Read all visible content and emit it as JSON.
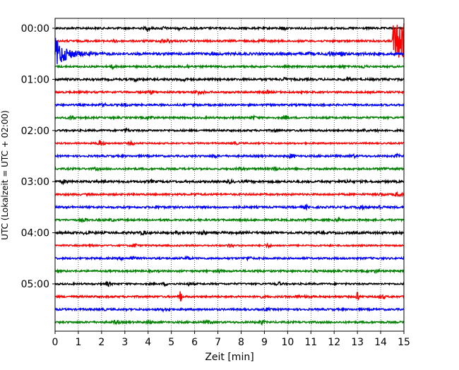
{
  "chart_data": {
    "type": "line",
    "title": "",
    "xlabel": "Zeit  [min]",
    "ylabel": "UTC (Lokalzeit = UTC + 02:00)",
    "xlim": [
      0,
      15
    ],
    "x_ticks": [
      "0",
      "1",
      "2",
      "3",
      "4",
      "5",
      "6",
      "7",
      "8",
      "9",
      "10",
      "11",
      "12",
      "13",
      "14",
      "15"
    ],
    "y_tick_labels": [
      "00:00",
      "01:00",
      "02:00",
      "03:00",
      "04:00",
      "05:00"
    ],
    "grid": "vertical dotted at each minute",
    "trace_interval_minutes": 15,
    "trace_colors": [
      "#000000",
      "#ff0000",
      "#0000ff",
      "#008000"
    ],
    "series": [
      {
        "start": "00:00",
        "color": "#000000",
        "amplitude": 1.0
      },
      {
        "start": "00:15",
        "color": "#ff0000",
        "amplitude": 1.0,
        "event_from_min": 14.5
      },
      {
        "start": "00:30",
        "color": "#0000ff",
        "amplitude": 1.3,
        "event_until_min": 2.5
      },
      {
        "start": "00:45",
        "color": "#008000",
        "amplitude": 1.0
      },
      {
        "start": "01:00",
        "color": "#000000",
        "amplitude": 1.1
      },
      {
        "start": "01:15",
        "color": "#ff0000",
        "amplitude": 1.0
      },
      {
        "start": "01:30",
        "color": "#0000ff",
        "amplitude": 1.0
      },
      {
        "start": "01:45",
        "color": "#008000",
        "amplitude": 1.0
      },
      {
        "start": "02:00",
        "color": "#000000",
        "amplitude": 1.0
      },
      {
        "start": "02:15",
        "color": "#ff0000",
        "amplitude": 0.8
      },
      {
        "start": "02:30",
        "color": "#0000ff",
        "amplitude": 1.0
      },
      {
        "start": "02:45",
        "color": "#008000",
        "amplitude": 1.0
      },
      {
        "start": "03:00",
        "color": "#000000",
        "amplitude": 1.2
      },
      {
        "start": "03:15",
        "color": "#ff0000",
        "amplitude": 1.0
      },
      {
        "start": "03:30",
        "color": "#0000ff",
        "amplitude": 1.1
      },
      {
        "start": "03:45",
        "color": "#008000",
        "amplitude": 1.0
      },
      {
        "start": "04:00",
        "color": "#000000",
        "amplitude": 1.2
      },
      {
        "start": "04:15",
        "color": "#ff0000",
        "amplitude": 0.8
      },
      {
        "start": "04:30",
        "color": "#0000ff",
        "amplitude": 1.0
      },
      {
        "start": "04:45",
        "color": "#008000",
        "amplitude": 1.0
      },
      {
        "start": "05:00",
        "color": "#000000",
        "amplitude": 0.9
      },
      {
        "start": "05:15",
        "color": "#ff0000",
        "amplitude": 1.0,
        "spikes_min": [
          5.4,
          13.0
        ]
      },
      {
        "start": "05:30",
        "color": "#0000ff",
        "amplitude": 1.0
      },
      {
        "start": "05:45",
        "color": "#008000",
        "amplitude": 1.0
      }
    ]
  }
}
